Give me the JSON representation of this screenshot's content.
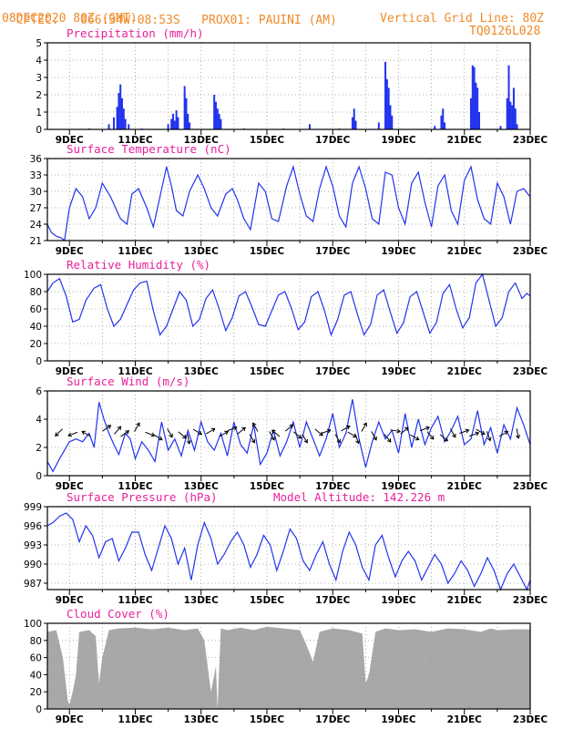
{
  "header": {
    "source": "CPTEC:",
    "coords": "066:34W-08:53S",
    "location": "PROX01: PAUINI (AM)",
    "date": "08DEC2020 80Z (GMT)",
    "grid_note": "Vertical Grid Line: 80Z",
    "model_id": "TQ0126L028"
  },
  "colors": {
    "line": "#2233ee",
    "cloud": "#a8a8a8",
    "title": "#e8209a",
    "header": "#f08a28"
  },
  "chart_data": [
    {
      "id": "precip",
      "type": "bar",
      "title": "Precipitation (mm/h)",
      "ylim": [
        0,
        5
      ],
      "yticks": [
        "0",
        "1",
        "2",
        "3",
        "4",
        "5"
      ],
      "xticks": [
        "9DEC",
        "11DEC",
        "13DEC",
        "15DEC",
        "17DEC",
        "19DEC",
        "21DEC",
        "23DEC"
      ],
      "x_start_day": 8.33,
      "x_end_day": 23.0,
      "values": [
        [
          9.6,
          0.05
        ],
        [
          10.2,
          0.3
        ],
        [
          10.35,
          0.7
        ],
        [
          10.45,
          1.3
        ],
        [
          10.5,
          2.1
        ],
        [
          10.55,
          2.6
        ],
        [
          10.6,
          1.8
        ],
        [
          10.65,
          1.2
        ],
        [
          10.7,
          0.6
        ],
        [
          10.8,
          0.3
        ],
        [
          11.2,
          0.05
        ],
        [
          12.0,
          0.3
        ],
        [
          12.1,
          0.6
        ],
        [
          12.15,
          0.9
        ],
        [
          12.2,
          0.5
        ],
        [
          12.25,
          1.1
        ],
        [
          12.3,
          0.7
        ],
        [
          12.5,
          2.5
        ],
        [
          12.55,
          1.8
        ],
        [
          12.6,
          0.9
        ],
        [
          12.65,
          0.4
        ],
        [
          13.4,
          2.0
        ],
        [
          13.45,
          1.6
        ],
        [
          13.5,
          1.2
        ],
        [
          13.55,
          0.9
        ],
        [
          13.6,
          0.6
        ],
        [
          14.3,
          0.05
        ],
        [
          15.5,
          0.05
        ],
        [
          16.3,
          0.3
        ],
        [
          17.2,
          0.05
        ],
        [
          17.6,
          0.7
        ],
        [
          17.65,
          1.2
        ],
        [
          17.7,
          0.5
        ],
        [
          18.4,
          0.4
        ],
        [
          18.6,
          3.9
        ],
        [
          18.65,
          2.9
        ],
        [
          18.7,
          2.4
        ],
        [
          18.75,
          1.4
        ],
        [
          18.8,
          0.8
        ],
        [
          20.1,
          0.2
        ],
        [
          20.3,
          0.8
        ],
        [
          20.35,
          1.2
        ],
        [
          20.4,
          0.4
        ],
        [
          21.2,
          1.8
        ],
        [
          21.25,
          3.7
        ],
        [
          21.3,
          3.6
        ],
        [
          21.35,
          2.7
        ],
        [
          21.4,
          2.4
        ],
        [
          21.45,
          1.0
        ],
        [
          22.1,
          0.2
        ],
        [
          22.3,
          1.8
        ],
        [
          22.35,
          3.7
        ],
        [
          22.4,
          1.6
        ],
        [
          22.45,
          1.4
        ],
        [
          22.5,
          2.4
        ],
        [
          22.55,
          1.2
        ],
        [
          22.6,
          0.3
        ]
      ]
    },
    {
      "id": "temp",
      "type": "line",
      "title": "Surface Temperature (nC)",
      "ylim": [
        21,
        36
      ],
      "yticks": [
        "21",
        "24",
        "27",
        "30",
        "33",
        "36"
      ],
      "xticks": [
        "9DEC",
        "11DEC",
        "13DEC",
        "15DEC",
        "17DEC",
        "19DEC",
        "21DEC",
        "23DEC"
      ],
      "x": [
        8.33,
        8.45,
        8.6,
        8.75,
        8.85,
        9.0,
        9.2,
        9.4,
        9.6,
        9.8,
        10.0,
        10.25,
        10.55,
        10.75,
        10.9,
        11.1,
        11.35,
        11.55,
        11.75,
        11.95,
        12.1,
        12.25,
        12.45,
        12.65,
        12.9,
        13.1,
        13.3,
        13.5,
        13.75,
        13.95,
        14.1,
        14.3,
        14.5,
        14.75,
        14.95,
        15.15,
        15.35,
        15.6,
        15.8,
        16.0,
        16.2,
        16.4,
        16.6,
        16.8,
        17.0,
        17.2,
        17.4,
        17.6,
        17.8,
        18.0,
        18.2,
        18.4,
        18.6,
        18.8,
        19.0,
        19.2,
        19.4,
        19.6,
        19.8,
        20.0,
        20.2,
        20.4,
        20.6,
        20.8,
        21.0,
        21.2,
        21.4,
        21.6,
        21.8,
        22.0,
        22.2,
        22.4,
        22.6,
        22.8,
        23.0
      ],
      "y": [
        24.0,
        22.5,
        21.8,
        21.5,
        21.0,
        27.0,
        30.5,
        29.0,
        25.0,
        27.0,
        31.5,
        29.0,
        25.0,
        24.0,
        29.5,
        30.5,
        27.0,
        23.5,
        29.0,
        34.5,
        31.0,
        26.5,
        25.5,
        30.0,
        33.0,
        30.5,
        27.0,
        25.5,
        29.5,
        30.5,
        28.5,
        25.0,
        23.0,
        31.5,
        30.0,
        25.0,
        24.5,
        31.0,
        34.5,
        29.5,
        25.5,
        24.5,
        30.5,
        34.5,
        31.0,
        25.5,
        23.5,
        31.5,
        34.5,
        30.5,
        25.0,
        24.0,
        33.5,
        33.0,
        27.0,
        24.0,
        31.5,
        33.5,
        28.0,
        23.5,
        31.0,
        33.0,
        26.5,
        24.0,
        32.0,
        34.5,
        28.5,
        25.0,
        24.0,
        31.5,
        29.0,
        24.0,
        30.0,
        30.5,
        29.0
      ]
    },
    {
      "id": "rh",
      "type": "line",
      "title": "Relative Humidity (%)",
      "ylim": [
        0,
        100
      ],
      "yticks": [
        "0",
        "20",
        "40",
        "60",
        "80",
        "100"
      ],
      "xticks": [
        "9DEC",
        "11DEC",
        "13DEC",
        "15DEC",
        "17DEC",
        "19DEC",
        "21DEC",
        "23DEC"
      ],
      "x": [
        8.33,
        8.5,
        8.7,
        8.9,
        9.1,
        9.3,
        9.5,
        9.75,
        9.95,
        10.15,
        10.35,
        10.55,
        10.75,
        10.95,
        11.15,
        11.35,
        11.55,
        11.75,
        11.95,
        12.15,
        12.35,
        12.55,
        12.75,
        12.95,
        13.15,
        13.35,
        13.55,
        13.75,
        13.95,
        14.15,
        14.35,
        14.55,
        14.75,
        14.95,
        15.15,
        15.35,
        15.55,
        15.75,
        15.95,
        16.15,
        16.35,
        16.55,
        16.75,
        16.95,
        17.15,
        17.35,
        17.55,
        17.75,
        17.95,
        18.15,
        18.35,
        18.55,
        18.75,
        18.95,
        19.15,
        19.35,
        19.55,
        19.75,
        19.95,
        20.15,
        20.35,
        20.55,
        20.75,
        20.95,
        21.15,
        21.35,
        21.55,
        21.75,
        21.95,
        22.15,
        22.35,
        22.55,
        22.75,
        22.9,
        23.0
      ],
      "y": [
        80,
        90,
        95,
        75,
        45,
        48,
        70,
        84,
        88,
        60,
        40,
        48,
        65,
        82,
        90,
        92,
        58,
        30,
        40,
        60,
        80,
        70,
        40,
        48,
        72,
        82,
        60,
        35,
        50,
        75,
        80,
        62,
        42,
        40,
        58,
        76,
        80,
        60,
        36,
        45,
        74,
        80,
        58,
        30,
        48,
        76,
        80,
        54,
        30,
        42,
        76,
        82,
        56,
        32,
        44,
        74,
        80,
        56,
        32,
        44,
        78,
        88,
        60,
        38,
        50,
        90,
        100,
        70,
        40,
        50,
        80,
        90,
        72,
        78,
        75
      ]
    },
    {
      "id": "wind",
      "type": "line",
      "title": "Surface Wind (m/s)",
      "ylim": [
        0,
        6
      ],
      "yticks": [
        "0",
        "2",
        "4",
        "6"
      ],
      "xticks": [
        "9DEC",
        "11DEC",
        "13DEC",
        "15DEC",
        "17DEC",
        "19DEC",
        "21DEC",
        "23DEC"
      ],
      "x": [
        8.33,
        8.5,
        8.7,
        8.85,
        9.0,
        9.2,
        9.4,
        9.6,
        9.75,
        9.9,
        10.05,
        10.2,
        10.35,
        10.5,
        10.7,
        10.85,
        11.0,
        11.2,
        11.4,
        11.6,
        11.8,
        12.0,
        12.2,
        12.4,
        12.6,
        12.8,
        13.0,
        13.2,
        13.4,
        13.6,
        13.8,
        14.0,
        14.2,
        14.4,
        14.6,
        14.8,
        15.0,
        15.2,
        15.4,
        15.6,
        15.8,
        16.0,
        16.2,
        16.4,
        16.6,
        16.8,
        17.0,
        17.2,
        17.4,
        17.6,
        17.8,
        18.0,
        18.2,
        18.4,
        18.6,
        18.8,
        19.0,
        19.2,
        19.4,
        19.6,
        19.8,
        20.0,
        20.2,
        20.4,
        20.6,
        20.8,
        21.0,
        21.2,
        21.4,
        21.6,
        21.8,
        22.0,
        22.2,
        22.4,
        22.6,
        22.8,
        23.0
      ],
      "y": [
        1.0,
        0.3,
        1.2,
        1.8,
        2.4,
        2.6,
        2.4,
        3.0,
        2.0,
        5.2,
        4.0,
        3.0,
        2.2,
        1.5,
        3.0,
        2.6,
        1.2,
        2.4,
        1.8,
        1.0,
        3.8,
        1.8,
        2.6,
        1.4,
        3.2,
        1.8,
        3.8,
        2.4,
        1.8,
        3.0,
        1.4,
        3.8,
        2.2,
        1.6,
        3.6,
        0.8,
        1.6,
        3.2,
        1.4,
        2.4,
        3.8,
        2.0,
        3.8,
        2.6,
        1.4,
        2.6,
        4.4,
        2.0,
        3.0,
        5.4,
        2.6,
        0.6,
        2.4,
        3.8,
        2.6,
        3.2,
        1.6,
        4.4,
        2.0,
        4.0,
        2.2,
        3.4,
        4.2,
        2.4,
        3.2,
        4.2,
        2.2,
        2.6,
        4.6,
        2.2,
        3.4,
        1.6,
        3.6,
        2.6,
        4.8,
        3.6,
        2.2
      ]
    },
    {
      "id": "press",
      "type": "line",
      "title": "Surface Pressure (hPa)",
      "annotation": "Model Altitude: 142.226 m",
      "ylim": [
        986,
        999
      ],
      "yticks": [
        "987",
        "990",
        "993",
        "996",
        "999"
      ],
      "xticks": [
        "9DEC",
        "11DEC",
        "13DEC",
        "15DEC",
        "17DEC",
        "19DEC",
        "21DEC",
        "23DEC"
      ],
      "x": [
        8.33,
        8.5,
        8.7,
        8.9,
        9.1,
        9.3,
        9.5,
        9.7,
        9.9,
        10.1,
        10.3,
        10.5,
        10.7,
        10.9,
        11.1,
        11.3,
        11.5,
        11.7,
        11.9,
        12.1,
        12.3,
        12.5,
        12.7,
        12.9,
        13.1,
        13.3,
        13.5,
        13.7,
        13.9,
        14.1,
        14.3,
        14.5,
        14.7,
        14.9,
        15.1,
        15.3,
        15.5,
        15.7,
        15.9,
        16.1,
        16.3,
        16.5,
        16.7,
        16.9,
        17.1,
        17.3,
        17.5,
        17.7,
        17.9,
        18.1,
        18.3,
        18.5,
        18.7,
        18.9,
        19.1,
        19.3,
        19.5,
        19.7,
        19.9,
        20.1,
        20.3,
        20.5,
        20.7,
        20.9,
        21.1,
        21.3,
        21.5,
        21.7,
        21.9,
        22.1,
        22.3,
        22.5,
        22.7,
        22.9,
        23.0
      ],
      "y": [
        996,
        996.5,
        997.5,
        998,
        997,
        993.5,
        996,
        994.5,
        991,
        993.5,
        994,
        990.5,
        992.5,
        995,
        995,
        991.5,
        989,
        992.5,
        996,
        994,
        990,
        992.5,
        987.5,
        993,
        996.5,
        994,
        990,
        991.5,
        993.5,
        995,
        993,
        989.5,
        991.5,
        994.5,
        993,
        989,
        992,
        995.5,
        994,
        990.5,
        989,
        991.5,
        993.5,
        990,
        987.5,
        992,
        995,
        993,
        989.5,
        987.5,
        993,
        994.5,
        991,
        988,
        990.5,
        992,
        990.5,
        987.5,
        989.5,
        991.5,
        990,
        987,
        988.5,
        990.5,
        989,
        986.5,
        988.5,
        991,
        989,
        986,
        988.5,
        990,
        988,
        986,
        987.5
      ]
    },
    {
      "id": "cloud",
      "type": "area",
      "title": "Cloud Cover (%)",
      "ylim": [
        0,
        100
      ],
      "yticks": [
        "0",
        "20",
        "40",
        "60",
        "80",
        "100"
      ],
      "xticks": [
        "9DEC",
        "11DEC",
        "13DEC",
        "15DEC",
        "17DEC",
        "19DEC",
        "21DEC",
        "23DEC"
      ],
      "x": [
        8.33,
        8.6,
        8.8,
        8.95,
        9.0,
        9.1,
        9.2,
        9.3,
        9.6,
        9.8,
        9.9,
        10.0,
        10.2,
        10.5,
        11.0,
        11.5,
        12.0,
        12.5,
        12.9,
        13.1,
        13.3,
        13.45,
        13.5,
        13.6,
        13.8,
        14.2,
        14.6,
        15.0,
        15.5,
        16.0,
        16.2,
        16.4,
        16.6,
        17.0,
        17.5,
        17.9,
        18.0,
        18.1,
        18.3,
        18.6,
        19.0,
        19.5,
        20.0,
        20.5,
        21.0,
        21.5,
        21.8,
        22.0,
        22.5,
        23.0
      ],
      "y": [
        90,
        92,
        60,
        10,
        5,
        20,
        40,
        90,
        92,
        85,
        30,
        60,
        92,
        94,
        95,
        93,
        95,
        92,
        94,
        80,
        20,
        50,
        0,
        94,
        92,
        95,
        92,
        96,
        94,
        92,
        75,
        55,
        90,
        94,
        92,
        88,
        30,
        40,
        90,
        94,
        92,
        93,
        90,
        94,
        93,
        90,
        94,
        92,
        93,
        93
      ]
    }
  ]
}
